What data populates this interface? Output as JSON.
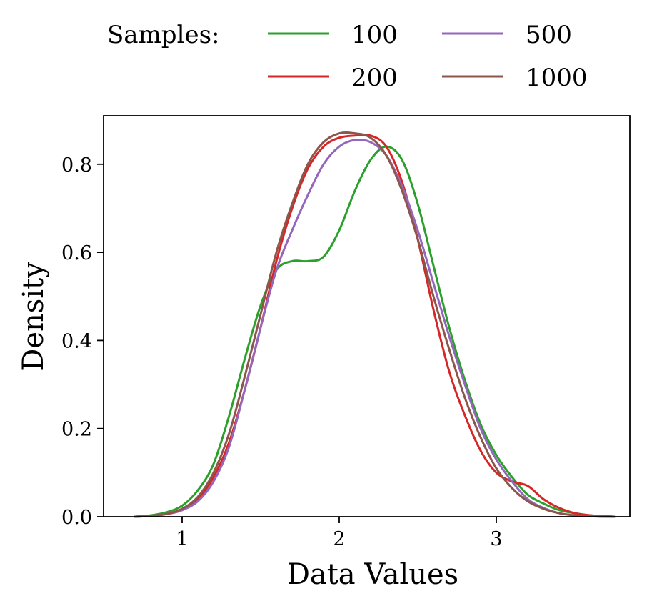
{
  "chart_data": {
    "type": "line",
    "title": "",
    "xlabel": "Data Values",
    "ylabel": "Density",
    "xlim": [
      0.5,
      3.85
    ],
    "ylim": [
      0.0,
      0.91
    ],
    "xticks": [
      1,
      2,
      3
    ],
    "yticks": [
      0.0,
      0.2,
      0.4,
      0.6,
      0.8
    ],
    "xtick_labels": [
      "1",
      "2",
      "3"
    ],
    "ytick_labels": [
      "0.0",
      "0.2",
      "0.4",
      "0.6",
      "0.8"
    ],
    "grid": false,
    "legend": {
      "title": "Samples:",
      "placement": "top, outside plot, 2 columns",
      "entries": [
        "100",
        "200",
        "500",
        "1000"
      ]
    },
    "series": [
      {
        "name": "100",
        "color": "#2ca02c",
        "x": [
          0.7,
          0.8,
          0.9,
          1.0,
          1.1,
          1.2,
          1.3,
          1.4,
          1.5,
          1.6,
          1.7,
          1.8,
          1.9,
          2.0,
          2.1,
          2.2,
          2.3,
          2.4,
          2.5,
          2.6,
          2.7,
          2.8,
          2.9,
          3.0,
          3.1,
          3.2,
          3.3,
          3.4,
          3.5,
          3.6,
          3.75
        ],
        "y": [
          0.0,
          0.003,
          0.01,
          0.025,
          0.06,
          0.12,
          0.23,
          0.36,
          0.48,
          0.56,
          0.58,
          0.58,
          0.59,
          0.65,
          0.74,
          0.81,
          0.84,
          0.81,
          0.71,
          0.57,
          0.43,
          0.31,
          0.21,
          0.14,
          0.09,
          0.05,
          0.03,
          0.015,
          0.008,
          0.003,
          0.0
        ]
      },
      {
        "name": "200",
        "color": "#d62728",
        "x": [
          0.7,
          0.8,
          0.9,
          1.0,
          1.1,
          1.2,
          1.3,
          1.4,
          1.5,
          1.6,
          1.7,
          1.8,
          1.9,
          2.0,
          2.1,
          2.2,
          2.3,
          2.4,
          2.5,
          2.6,
          2.7,
          2.8,
          2.9,
          3.0,
          3.1,
          3.2,
          3.3,
          3.4,
          3.5,
          3.6,
          3.75
        ],
        "y": [
          0.0,
          0.002,
          0.006,
          0.015,
          0.04,
          0.09,
          0.17,
          0.29,
          0.43,
          0.58,
          0.7,
          0.79,
          0.84,
          0.86,
          0.865,
          0.865,
          0.84,
          0.76,
          0.63,
          0.47,
          0.33,
          0.23,
          0.15,
          0.1,
          0.08,
          0.07,
          0.04,
          0.02,
          0.008,
          0.003,
          0.0
        ]
      },
      {
        "name": "500",
        "color": "#9467bd",
        "x": [
          0.7,
          0.8,
          0.9,
          1.0,
          1.1,
          1.2,
          1.3,
          1.4,
          1.5,
          1.6,
          1.7,
          1.8,
          1.9,
          2.0,
          2.1,
          2.2,
          2.3,
          2.4,
          2.5,
          2.6,
          2.7,
          2.8,
          2.9,
          3.0,
          3.1,
          3.2,
          3.3,
          3.4,
          3.5,
          3.6,
          3.75
        ],
        "y": [
          0.0,
          0.002,
          0.006,
          0.015,
          0.035,
          0.08,
          0.16,
          0.29,
          0.43,
          0.56,
          0.65,
          0.73,
          0.8,
          0.84,
          0.855,
          0.85,
          0.82,
          0.75,
          0.65,
          0.53,
          0.41,
          0.3,
          0.2,
          0.13,
          0.08,
          0.04,
          0.02,
          0.008,
          0.003,
          0.001,
          0.0
        ]
      },
      {
        "name": "1000",
        "color": "#8c564b",
        "x": [
          0.7,
          0.8,
          0.9,
          1.0,
          1.1,
          1.2,
          1.3,
          1.4,
          1.5,
          1.6,
          1.7,
          1.8,
          1.9,
          2.0,
          2.1,
          2.2,
          2.3,
          2.4,
          2.5,
          2.6,
          2.7,
          2.8,
          2.9,
          3.0,
          3.1,
          3.2,
          3.3,
          3.4,
          3.5,
          3.6,
          3.75
        ],
        "y": [
          0.0,
          0.002,
          0.006,
          0.018,
          0.045,
          0.1,
          0.19,
          0.32,
          0.46,
          0.6,
          0.71,
          0.8,
          0.85,
          0.87,
          0.87,
          0.86,
          0.82,
          0.74,
          0.63,
          0.5,
          0.38,
          0.27,
          0.18,
          0.11,
          0.065,
          0.035,
          0.018,
          0.008,
          0.003,
          0.001,
          0.0
        ]
      }
    ]
  }
}
